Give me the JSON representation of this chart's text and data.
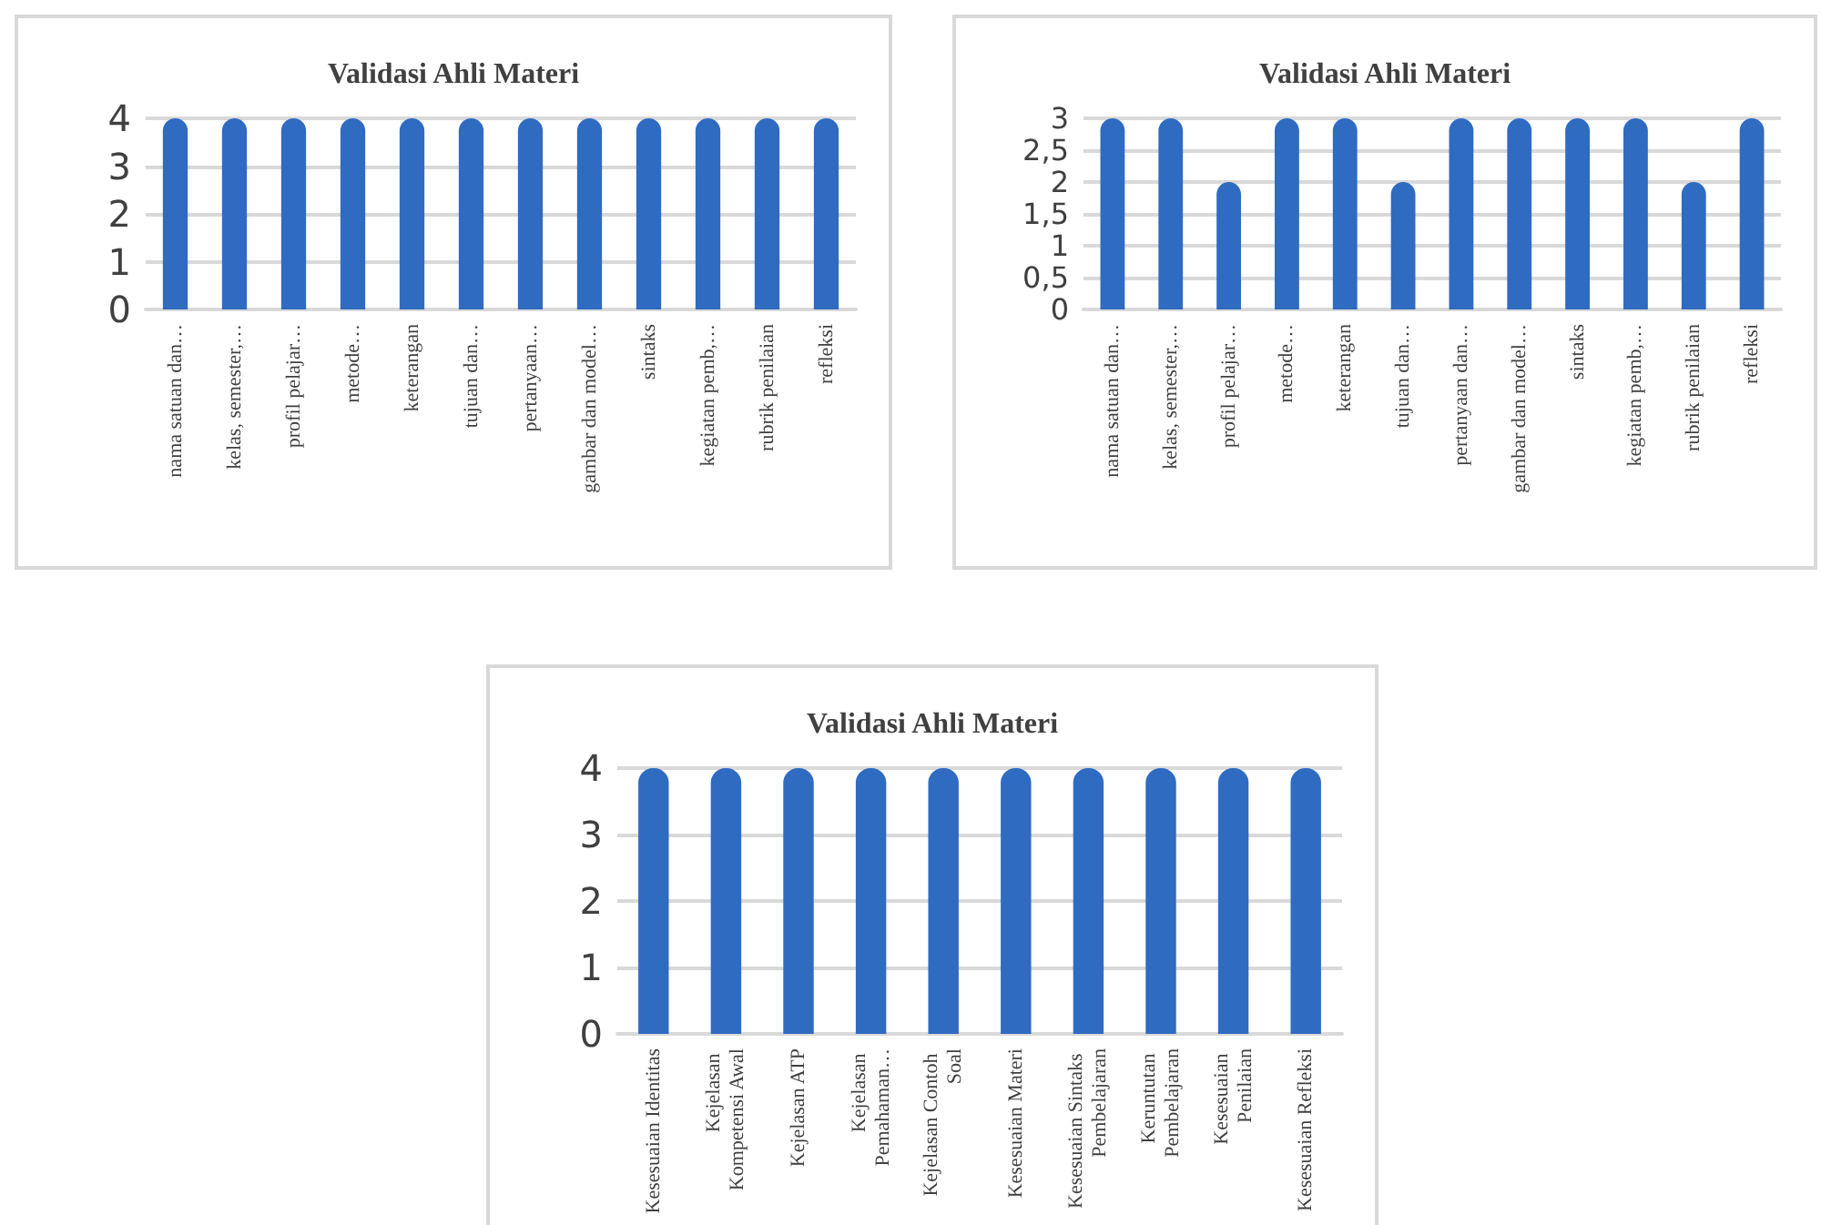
{
  "chart_data": [
    {
      "type": "bar",
      "title": "Validasi Ahli Materi",
      "categories": [
        "nama satuan dan…",
        "kelas, semester,…",
        "profil pelajar…",
        "metode…",
        "keterangan",
        "tujuan dan…",
        "pertanyaan…",
        "gambar dan model…",
        "sintaks",
        "kegiatan pemb,…",
        "rubrik penilaian",
        "refleksi"
      ],
      "values": [
        4,
        4,
        4,
        4,
        4,
        4,
        4,
        4,
        4,
        4,
        4,
        4
      ],
      "color": "#2f6bc1",
      "ylim": [
        0,
        4
      ],
      "yticks": [
        0,
        1,
        2,
        3,
        4
      ],
      "grid": "y"
    },
    {
      "type": "bar",
      "title": "Validasi Ahli Materi",
      "categories": [
        "nama satuan dan…",
        "kelas, semester,…",
        "profil pelajar…",
        "metode…",
        "keterangan",
        "tujuan dan…",
        "pertanyaan dan…",
        "gambar dan model…",
        "sintaks",
        "kegiatan pemb,…",
        "rubrik penilaian",
        "refleksi"
      ],
      "values": [
        3,
        3,
        2,
        3,
        3,
        2,
        3,
        3,
        3,
        3,
        2,
        3
      ],
      "color": "#2f6bc1",
      "ylim": [
        0,
        3
      ],
      "yticks": [
        0,
        {
          "value": 0.5,
          "label": "0,5"
        },
        1,
        {
          "value": 1.5,
          "label": "1,5"
        },
        2,
        {
          "value": 2.5,
          "label": "2,5"
        },
        3
      ],
      "grid": "y"
    },
    {
      "type": "bar",
      "title": "Validasi Ahli Materi",
      "categories": [
        "Kesesuaian Identitas",
        "Kejelasan Kompetensi Awal",
        "Kejelasan ATP",
        "Kejelasan Pemahaman…",
        "Kejelasan Contoh Soal",
        "Kesesuaian Materi",
        "Kesesuaian Sintaks Pembelajaran",
        "Keruntutan Pembelajaran",
        "Kesesuaian Penilaian",
        "Kesesuaian Refleksi"
      ],
      "values": [
        4,
        4,
        4,
        4,
        4,
        4,
        4,
        4,
        4,
        4
      ],
      "color": "#2f6bc1",
      "ylim": [
        0,
        4
      ],
      "yticks": [
        0,
        1,
        2,
        3,
        4
      ],
      "grid": "y"
    }
  ]
}
